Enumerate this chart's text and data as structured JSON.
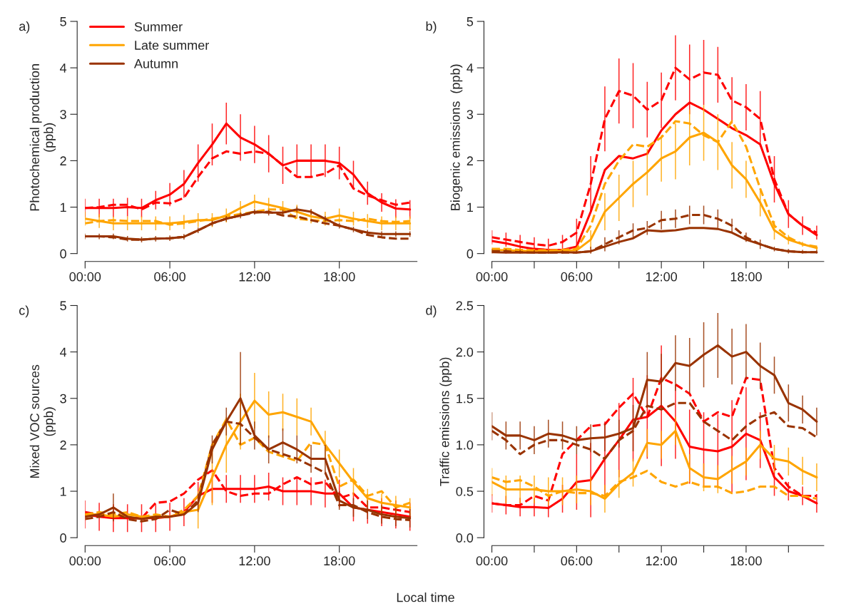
{
  "chart_data": [
    {
      "type": "line",
      "title": "a)",
      "ylabel": "Photochemical production\n(ppb)",
      "legend": "top left",
      "x": [
        0,
        1,
        2,
        3,
        4,
        5,
        6,
        7,
        8,
        9,
        10,
        11,
        12,
        13,
        14,
        15,
        16,
        17,
        18,
        19,
        20,
        21,
        22,
        23
      ],
      "xlim": [
        0,
        23.5
      ],
      "xticks": [
        {
          "value": 0,
          "label": "00:00"
        },
        {
          "value": 6,
          "label": "06:00"
        },
        {
          "value": 12,
          "label": "12:00"
        },
        {
          "value": 18,
          "label": "18:00"
        }
      ],
      "ylim": [
        0,
        5
      ],
      "yticks": [
        0,
        1,
        2,
        3,
        4,
        5
      ],
      "series": [
        {
          "name": "Summer",
          "color": "#ff0000",
          "line_style": "solid",
          "values": [
            0.98,
            0.98,
            0.98,
            1.0,
            0.98,
            1.15,
            1.27,
            1.5,
            1.95,
            2.35,
            2.8,
            2.5,
            2.35,
            2.15,
            1.9,
            2.0,
            2.0,
            2.0,
            1.95,
            1.7,
            1.3,
            1.1,
            0.97,
            0.95
          ],
          "errors": [
            0.2,
            0.2,
            0.2,
            0.2,
            0.2,
            0.2,
            0.25,
            0.3,
            0.4,
            0.45,
            0.45,
            0.5,
            0.4,
            0.4,
            0.4,
            0.35,
            0.35,
            0.35,
            0.35,
            0.3,
            0.25,
            0.2,
            0.2,
            0.2
          ]
        },
        {
          "color": "#ff0000",
          "line_style": "dashed",
          "values": [
            0.98,
            1.0,
            1.05,
            1.05,
            0.95,
            1.1,
            1.08,
            1.2,
            1.65,
            2.05,
            2.2,
            2.15,
            2.2,
            2.15,
            1.9,
            1.65,
            1.65,
            1.72,
            1.9,
            1.4,
            1.25,
            1.15,
            1.05,
            1.1
          ]
        },
        {
          "name": "Late summer",
          "color": "#ffa500",
          "line_style": "solid",
          "values": [
            0.75,
            0.7,
            0.65,
            0.65,
            0.65,
            0.65,
            0.65,
            0.68,
            0.72,
            0.72,
            0.82,
            0.98,
            1.12,
            1.05,
            0.98,
            0.9,
            0.8,
            0.75,
            0.82,
            0.75,
            0.7,
            0.65,
            0.65,
            0.65
          ],
          "errors": [
            0.15,
            0.15,
            0.15,
            0.15,
            0.15,
            0.15,
            0.15,
            0.15,
            0.15,
            0.15,
            0.15,
            0.15,
            0.15,
            0.15,
            0.15,
            0.15,
            0.15,
            0.15,
            0.15,
            0.15,
            0.15,
            0.15,
            0.15,
            0.15
          ]
        },
        {
          "color": "#ffa500",
          "line_style": "dashed",
          "values": [
            0.65,
            0.7,
            0.72,
            0.7,
            0.7,
            0.7,
            0.62,
            0.65,
            0.7,
            0.75,
            0.8,
            0.85,
            0.9,
            0.95,
            0.95,
            0.75,
            0.72,
            0.7,
            0.72,
            0.7,
            0.75,
            0.7,
            0.68,
            0.7
          ]
        },
        {
          "name": "Autumn",
          "color": "#993300",
          "line_style": "solid",
          "values": [
            0.37,
            0.37,
            0.37,
            0.32,
            0.3,
            0.32,
            0.33,
            0.36,
            0.5,
            0.65,
            0.75,
            0.82,
            0.9,
            0.88,
            0.88,
            0.95,
            0.9,
            0.75,
            0.6,
            0.52,
            0.45,
            0.42,
            0.42,
            0.42
          ],
          "errors": [
            0.06,
            0.06,
            0.06,
            0.06,
            0.06,
            0.06,
            0.06,
            0.06,
            0.06,
            0.06,
            0.06,
            0.06,
            0.06,
            0.06,
            0.06,
            0.06,
            0.06,
            0.06,
            0.06,
            0.06,
            0.06,
            0.06,
            0.06,
            0.06
          ]
        },
        {
          "color": "#993300",
          "line_style": "dashed",
          "values": [
            0.37,
            0.37,
            0.35,
            0.3,
            0.3,
            0.32,
            0.33,
            0.36,
            0.5,
            0.65,
            0.75,
            0.82,
            0.88,
            0.9,
            0.82,
            0.8,
            0.72,
            0.65,
            0.6,
            0.52,
            0.4,
            0.35,
            0.32,
            0.32
          ]
        }
      ]
    },
    {
      "type": "line",
      "title": "b)",
      "ylabel": "Biogenic emissions  (ppb)",
      "x": [
        0,
        1,
        2,
        3,
        4,
        5,
        6,
        7,
        8,
        9,
        10,
        11,
        12,
        13,
        14,
        15,
        16,
        17,
        18,
        19,
        20,
        21,
        22,
        23
      ],
      "xlim": [
        0,
        23.5
      ],
      "xticks": [
        {
          "value": 0,
          "label": "00:00"
        },
        {
          "value": 3,
          "label": null
        },
        {
          "value": 6,
          "label": "06:00"
        },
        {
          "value": 9,
          "label": null
        },
        {
          "value": 12,
          "label": "12:00"
        },
        {
          "value": 15,
          "label": null
        },
        {
          "value": 18,
          "label": "18:00"
        },
        {
          "value": 21,
          "label": null
        }
      ],
      "ylim": [
        0,
        5
      ],
      "yticks": [
        0,
        1,
        2,
        3,
        4,
        5
      ],
      "series": [
        {
          "color": "#ff0000",
          "line_style": "solid",
          "values": [
            0.27,
            0.22,
            0.15,
            0.1,
            0.08,
            0.08,
            0.15,
            0.9,
            1.8,
            2.1,
            2.05,
            2.15,
            2.65,
            3.0,
            3.25,
            3.1,
            2.9,
            2.7,
            2.55,
            2.35,
            1.5,
            0.85,
            0.6,
            0.4
          ]
        },
        {
          "color": "#ff0000",
          "line_style": "dashed",
          "values": [
            0.35,
            0.3,
            0.25,
            0.2,
            0.17,
            0.25,
            0.45,
            1.5,
            2.9,
            3.5,
            3.4,
            3.1,
            3.3,
            4.0,
            3.75,
            3.9,
            3.85,
            3.3,
            3.15,
            2.9,
            1.6,
            0.85,
            0.6,
            0.45
          ],
          "errors": [
            0.15,
            0.15,
            0.15,
            0.15,
            0.15,
            0.15,
            0.3,
            0.6,
            0.7,
            0.7,
            0.7,
            0.6,
            0.6,
            0.7,
            0.75,
            0.7,
            0.6,
            0.5,
            0.5,
            0.6,
            0.5,
            0.3,
            0.2,
            0.15
          ]
        },
        {
          "color": "#ffa500",
          "line_style": "solid",
          "values": [
            0.08,
            0.07,
            0.06,
            0.05,
            0.05,
            0.06,
            0.07,
            0.3,
            0.9,
            1.2,
            1.5,
            1.75,
            2.05,
            2.2,
            2.5,
            2.6,
            2.4,
            1.9,
            1.6,
            1.1,
            0.5,
            0.3,
            0.2,
            0.12
          ],
          "errors": [
            0.05,
            0.05,
            0.05,
            0.05,
            0.05,
            0.05,
            0.05,
            0.2,
            0.4,
            0.5,
            0.5,
            0.5,
            0.5,
            0.6,
            0.6,
            0.6,
            0.6,
            0.5,
            0.4,
            0.3,
            0.2,
            0.1,
            0.05,
            0.05
          ]
        },
        {
          "color": "#ffa500",
          "line_style": "dashed",
          "values": [
            0.1,
            0.1,
            0.08,
            0.07,
            0.07,
            0.08,
            0.1,
            0.6,
            1.5,
            2.0,
            2.35,
            2.3,
            2.5,
            2.85,
            2.8,
            2.55,
            2.4,
            2.85,
            2.3,
            1.4,
            0.6,
            0.35,
            0.2,
            0.15
          ]
        },
        {
          "color": "#993300",
          "line_style": "solid",
          "values": [
            0.03,
            0.02,
            0.02,
            0.02,
            0.02,
            0.03,
            0.02,
            0.05,
            0.15,
            0.25,
            0.33,
            0.5,
            0.48,
            0.5,
            0.55,
            0.55,
            0.53,
            0.45,
            0.3,
            0.2,
            0.1,
            0.05,
            0.03,
            0.03
          ]
        },
        {
          "color": "#993300",
          "line_style": "dashed",
          "values": [
            0.05,
            0.05,
            0.03,
            0.02,
            0.02,
            0.02,
            0.02,
            0.05,
            0.2,
            0.35,
            0.5,
            0.55,
            0.72,
            0.75,
            0.83,
            0.83,
            0.75,
            0.6,
            0.35,
            0.2,
            0.1,
            0.05,
            0.03,
            0.03
          ],
          "errors": [
            0.05,
            0.05,
            0.05,
            0.05,
            0.05,
            0.05,
            0.05,
            0.1,
            0.15,
            0.15,
            0.15,
            0.15,
            0.2,
            0.2,
            0.2,
            0.2,
            0.2,
            0.15,
            0.1,
            0.1,
            0.05,
            0.05,
            0.05,
            0.05
          ]
        }
      ]
    },
    {
      "type": "line",
      "title": "c)",
      "ylabel": "Mixed VOC sources\n(ppb)",
      "x": [
        0,
        1,
        2,
        3,
        4,
        5,
        6,
        7,
        8,
        9,
        10,
        11,
        12,
        13,
        14,
        15,
        16,
        17,
        18,
        19,
        20,
        21,
        22,
        23
      ],
      "xlim": [
        0,
        23.5
      ],
      "xticks": [
        {
          "value": 0,
          "label": "00:00"
        },
        {
          "value": 6,
          "label": "06:00"
        },
        {
          "value": 12,
          "label": "12:00"
        },
        {
          "value": 18,
          "label": "18:00"
        }
      ],
      "ylim": [
        0,
        5
      ],
      "yticks": [
        0,
        1,
        2,
        3,
        4,
        5
      ],
      "series": [
        {
          "color": "#ff0000",
          "line_style": "solid",
          "values": [
            0.5,
            0.45,
            0.42,
            0.42,
            0.42,
            0.42,
            0.45,
            0.55,
            0.9,
            1.05,
            1.05,
            1.05,
            1.05,
            1.1,
            1.0,
            1.0,
            1.0,
            0.95,
            0.95,
            0.65,
            0.6,
            0.55,
            0.5,
            0.45
          ],
          "errors": [
            0.3,
            0.3,
            0.3,
            0.3,
            0.3,
            0.3,
            0.3,
            0.3,
            0.3,
            0.3,
            0.3,
            0.3,
            0.3,
            0.3,
            0.3,
            0.3,
            0.3,
            0.3,
            0.3,
            0.3,
            0.3,
            0.3,
            0.3,
            0.3
          ]
        },
        {
          "color": "#ff0000",
          "line_style": "dashed",
          "values": [
            0.55,
            0.5,
            0.45,
            0.42,
            0.42,
            0.75,
            0.78,
            0.95,
            1.25,
            1.45,
            1.0,
            0.9,
            0.95,
            0.95,
            1.15,
            1.3,
            1.15,
            1.2,
            0.85,
            0.95,
            0.65,
            0.65,
            0.6,
            0.55
          ]
        },
        {
          "color": "#ffa500",
          "line_style": "solid",
          "values": [
            0.5,
            0.5,
            0.45,
            0.5,
            0.45,
            0.45,
            0.45,
            0.55,
            0.6,
            1.3,
            2.0,
            2.5,
            2.95,
            2.65,
            2.7,
            2.6,
            2.5,
            2.0,
            1.6,
            1.2,
            0.85,
            0.75,
            0.7,
            0.65
          ],
          "errors": [
            null,
            null,
            null,
            null,
            null,
            null,
            null,
            null,
            0.4,
            0.6,
            0.6,
            0.6,
            0.6,
            0.5,
            0.4,
            0.4,
            0.3,
            0.3,
            0.3,
            0.3,
            0.2,
            0.2,
            0.2,
            0.2
          ]
        },
        {
          "color": "#ffa500",
          "line_style": "dashed",
          "values": [
            0.5,
            0.55,
            0.5,
            0.55,
            0.45,
            0.5,
            0.45,
            0.6,
            0.9,
            2.0,
            2.55,
            2.0,
            2.15,
            1.85,
            1.75,
            1.65,
            2.05,
            2.0,
            1.1,
            1.25,
            0.9,
            1.0,
            0.65,
            0.75
          ]
        },
        {
          "color": "#993300",
          "line_style": "solid",
          "values": [
            0.45,
            0.5,
            0.65,
            0.45,
            0.4,
            0.45,
            0.45,
            0.5,
            0.75,
            1.9,
            2.5,
            3.0,
            2.2,
            1.9,
            2.05,
            1.9,
            1.7,
            1.7,
            0.8,
            0.65,
            0.6,
            0.5,
            0.45,
            0.42
          ],
          "errors": [
            null,
            null,
            0.3,
            null,
            null,
            null,
            null,
            null,
            0.2,
            0.3,
            0.3,
            1.0,
            0.3,
            0.3,
            0.3,
            0.3,
            0.3,
            0.3,
            0.2,
            0.2,
            0.2,
            0.2,
            0.2,
            0.2
          ]
        },
        {
          "color": "#993300",
          "line_style": "dashed",
          "values": [
            0.4,
            0.45,
            0.55,
            0.4,
            0.35,
            0.4,
            0.6,
            0.5,
            0.8,
            2.0,
            2.5,
            2.45,
            2.15,
            1.9,
            1.8,
            1.7,
            1.55,
            1.4,
            0.7,
            0.7,
            0.55,
            0.45,
            0.4,
            0.38
          ]
        }
      ]
    },
    {
      "type": "line",
      "title": "d)",
      "ylabel": "Traffic emissions (ppb)",
      "annotations": [
        "Local time"
      ],
      "x": [
        0,
        1,
        2,
        3,
        4,
        5,
        6,
        7,
        8,
        9,
        10,
        11,
        12,
        13,
        14,
        15,
        16,
        17,
        18,
        19,
        20,
        21,
        22,
        23
      ],
      "xlim": [
        0,
        23.5
      ],
      "xticks": [
        {
          "value": 0,
          "label": "00:00"
        },
        {
          "value": 3,
          "label": null
        },
        {
          "value": 6,
          "label": "06:00"
        },
        {
          "value": 9,
          "label": null
        },
        {
          "value": 12,
          "label": "12:00"
        },
        {
          "value": 15,
          "label": null
        },
        {
          "value": 18,
          "label": "18:00"
        },
        {
          "value": 21,
          "label": null
        }
      ],
      "ylim": [
        0,
        2.5
      ],
      "yticks": [
        {
          "value": 0,
          "label": "0.0"
        },
        {
          "value": 0.5,
          "label": "0.5"
        },
        {
          "value": 1,
          "label": "1.0"
        },
        {
          "value": 1.5,
          "label": "1.5"
        },
        {
          "value": 2,
          "label": "2.0"
        },
        {
          "value": 2.5,
          "label": "2.5"
        }
      ],
      "series": [
        {
          "color": "#ff0000",
          "line_style": "solid",
          "values": [
            0.37,
            0.35,
            0.33,
            0.33,
            0.32,
            0.42,
            0.6,
            0.62,
            0.85,
            1.05,
            1.27,
            1.3,
            1.42,
            1.25,
            0.98,
            0.95,
            0.93,
            0.98,
            1.12,
            1.05,
            0.65,
            0.5,
            0.45,
            0.37
          ],
          "errors": [
            0.1,
            0.1,
            0.1,
            0.1,
            0.1,
            0.15,
            0.3,
            0.4,
            0.4,
            0.4,
            0.45,
            0.45,
            0.65,
            0.4,
            0.4,
            0.4,
            0.4,
            0.5,
            0.5,
            0.3,
            0.2,
            0.1,
            0.1,
            0.1
          ]
        },
        {
          "color": "#ff0000",
          "line_style": "dashed",
          "values": [
            0.37,
            0.35,
            0.35,
            0.45,
            0.4,
            0.9,
            1.05,
            1.2,
            1.22,
            1.4,
            1.55,
            1.3,
            1.72,
            1.65,
            1.55,
            1.25,
            1.35,
            1.3,
            1.72,
            1.7,
            0.75,
            0.55,
            0.45,
            0.45
          ]
        },
        {
          "color": "#ffa500",
          "line_style": "solid",
          "values": [
            0.6,
            0.52,
            0.52,
            0.52,
            0.5,
            0.5,
            0.52,
            0.5,
            0.42,
            0.58,
            0.7,
            1.02,
            1.0,
            1.15,
            0.75,
            0.65,
            0.63,
            0.73,
            0.82,
            1.0,
            0.85,
            0.82,
            0.72,
            0.65
          ],
          "errors": [
            0.15,
            0.15,
            0.15,
            0.15,
            0.15,
            0.15,
            0.15,
            0.15,
            0.15,
            0.15,
            0.15,
            0.15,
            0.15,
            0.15,
            0.15,
            0.15,
            0.15,
            0.15,
            0.15,
            0.15,
            0.15,
            0.15,
            0.15,
            0.15
          ]
        },
        {
          "color": "#ffa500",
          "line_style": "dashed",
          "values": [
            0.65,
            0.6,
            0.62,
            0.55,
            0.45,
            0.5,
            0.48,
            0.48,
            0.45,
            0.6,
            0.65,
            0.72,
            0.6,
            0.55,
            0.6,
            0.55,
            0.55,
            0.48,
            0.5,
            0.55,
            0.55,
            0.45,
            0.45,
            0.42
          ]
        },
        {
          "color": "#993300",
          "line_style": "solid",
          "values": [
            1.2,
            1.1,
            1.1,
            1.05,
            1.12,
            1.1,
            1.05,
            1.07,
            1.08,
            1.12,
            1.18,
            1.7,
            1.68,
            1.88,
            1.85,
            1.97,
            2.07,
            1.95,
            2.0,
            1.85,
            1.75,
            1.45,
            1.38,
            1.25
          ],
          "errors": [
            0.15,
            0.15,
            0.15,
            0.15,
            0.15,
            0.15,
            0.15,
            0.15,
            0.15,
            0.15,
            0.25,
            0.3,
            0.3,
            0.3,
            0.3,
            0.35,
            0.35,
            0.3,
            0.3,
            0.25,
            0.2,
            0.2,
            0.15,
            0.15
          ]
        },
        {
          "color": "#993300",
          "line_style": "dashed",
          "values": [
            1.15,
            1.05,
            0.9,
            1.0,
            1.05,
            1.05,
            1.0,
            0.95,
            0.85,
            1.05,
            1.15,
            1.42,
            1.38,
            1.45,
            1.45,
            1.25,
            1.15,
            1.05,
            1.2,
            1.3,
            1.35,
            1.2,
            1.18,
            1.08
          ]
        }
      ]
    }
  ]
}
